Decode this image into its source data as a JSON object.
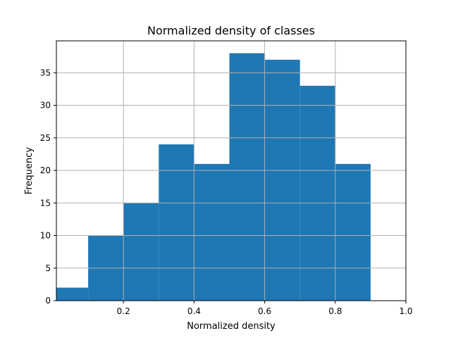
{
  "chart_data": {
    "type": "bar",
    "title": "Normalized density of classes",
    "xlabel": "Normalized density",
    "ylabel": "Frequency",
    "bin_edges": [
      0.01,
      0.1,
      0.2,
      0.3,
      0.4,
      0.5,
      0.6,
      0.7,
      0.8,
      0.9
    ],
    "values": [
      2,
      10,
      15,
      24,
      21,
      38,
      37,
      33,
      21
    ],
    "xlim": [
      0.01,
      1.0
    ],
    "ylim": [
      0,
      39.9
    ],
    "xticks": [
      0.2,
      0.4,
      0.6,
      0.8,
      1.0
    ],
    "xtick_labels": [
      "0.2",
      "0.4",
      "0.6",
      "0.8",
      "1.0"
    ],
    "yticks": [
      0,
      5,
      10,
      15,
      20,
      25,
      30,
      35
    ],
    "ytick_labels": [
      "0",
      "5",
      "10",
      "15",
      "20",
      "25",
      "30",
      "35"
    ],
    "grid": true,
    "bar_color": "#1f77b4"
  }
}
